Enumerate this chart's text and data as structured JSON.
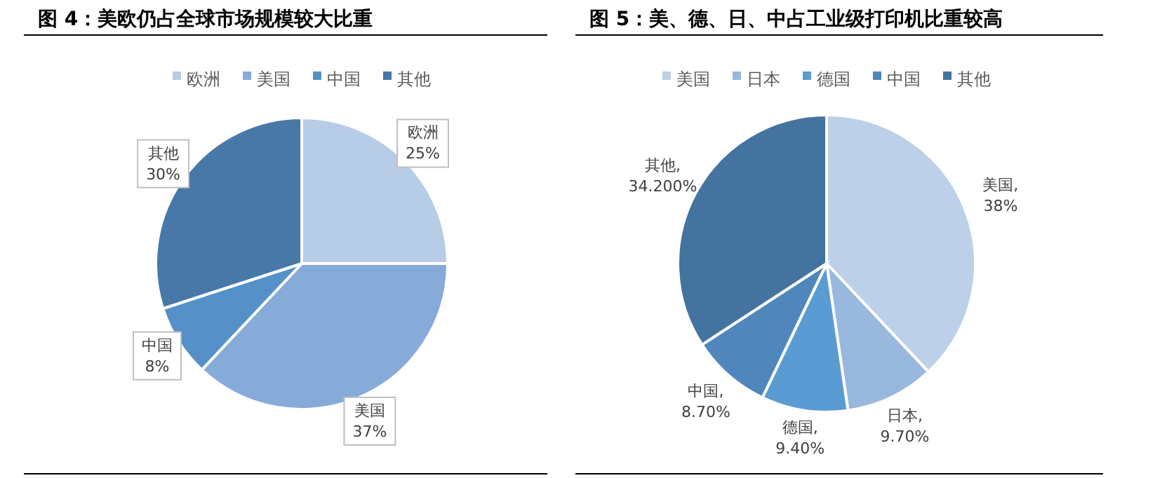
{
  "chart_data": [
    {
      "type": "pie",
      "title": "图 4：美欧仍占全球市场规模较大比重",
      "legend": "top",
      "categories": [
        "欧洲",
        "美国",
        "中国",
        "其他"
      ],
      "values": [
        25,
        37,
        8,
        30
      ],
      "colors": [
        "#b7cce6",
        "#86abd9",
        "#5591c8",
        "#4778a8"
      ],
      "value_labels": [
        "欧洲\n25%",
        "美国\n37%",
        "中国\n8%",
        "其他\n30%"
      ]
    },
    {
      "type": "pie",
      "title": "图 5：美、德、日、中占工业级打印机比重较高",
      "legend": "top",
      "categories": [
        "美国",
        "日本",
        "德国",
        "中国",
        "其他"
      ],
      "values": [
        38,
        9.7,
        9.4,
        8.7,
        34.2
      ],
      "colors": [
        "#bcd0e9",
        "#98b8de",
        "#5b9bd3",
        "#4f86bb",
        "#44739f"
      ],
      "value_labels": [
        "美国,\n38%",
        "日本,\n9.70%",
        "德国,\n9.40%",
        "中国,\n8.70%",
        "其他,\n34.200%"
      ]
    }
  ]
}
